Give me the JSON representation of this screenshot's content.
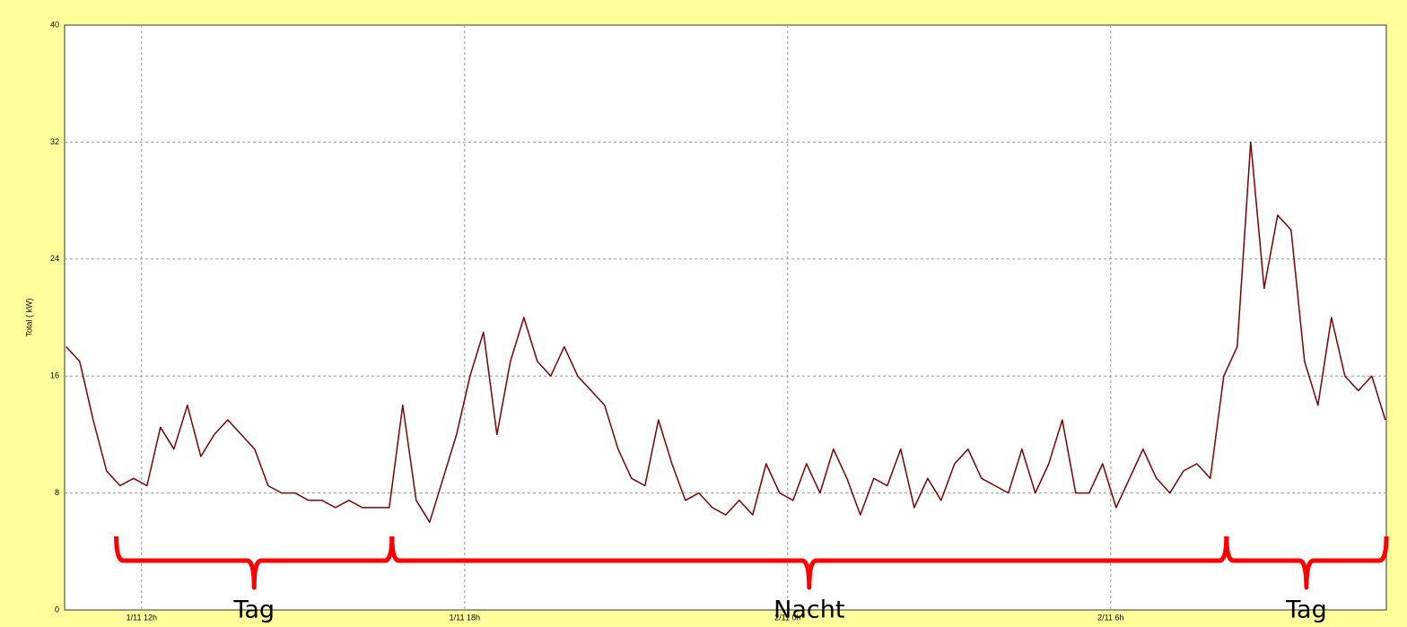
{
  "chart_data": {
    "type": "line",
    "y_label": "Total ( kW)",
    "xlim": [
      10.57,
      35.12
    ],
    "ylim": [
      0,
      40
    ],
    "yticks": [
      0,
      8,
      16,
      24,
      32,
      40
    ],
    "xticks": [
      {
        "value": 12,
        "label": "1/11 12h"
      },
      {
        "value": 18,
        "label": "1/11 18h"
      },
      {
        "value": 24,
        "label": "2/11 0h"
      },
      {
        "value": 30,
        "label": "2/11 6h"
      }
    ],
    "grid": true,
    "series": [
      {
        "color": "#800000",
        "x": [
          10.6,
          10.85,
          11.1,
          11.35,
          11.6,
          11.85,
          12.1,
          12.35,
          12.6,
          12.85,
          13.1,
          13.35,
          13.6,
          13.85,
          14.1,
          14.35,
          14.6,
          14.85,
          15.1,
          15.35,
          15.6,
          15.85,
          16.1,
          16.35,
          16.6,
          16.85,
          17.1,
          17.35,
          17.6,
          17.85,
          18.1,
          18.35,
          18.6,
          18.85,
          19.1,
          19.35,
          19.6,
          19.85,
          20.1,
          20.35,
          20.6,
          20.85,
          21.1,
          21.35,
          21.6,
          21.85,
          22.1,
          22.35,
          22.6,
          22.85,
          23.1,
          23.35,
          23.6,
          23.85,
          24.1,
          24.35,
          24.6,
          24.85,
          25.1,
          25.35,
          25.6,
          25.85,
          26.1,
          26.35,
          26.6,
          26.85,
          27.1,
          27.35,
          27.6,
          27.85,
          28.1,
          28.35,
          28.6,
          28.85,
          29.1,
          29.35,
          29.6,
          29.85,
          30.1,
          30.35,
          30.6,
          30.85,
          31.1,
          31.35,
          31.6,
          31.85,
          32.1,
          32.35,
          32.6,
          32.85,
          33.1,
          33.35,
          33.6,
          33.85,
          34.1,
          34.35,
          34.6,
          34.85,
          35.1
        ],
        "values": [
          18,
          17,
          13,
          9.5,
          8.5,
          9,
          8.5,
          12.5,
          11,
          14,
          10.5,
          12,
          13,
          12,
          11,
          8.5,
          8,
          8,
          7.5,
          7.5,
          7,
          7.5,
          7,
          7,
          7,
          14,
          7.5,
          6,
          9,
          12,
          16,
          19,
          12,
          17,
          20,
          17,
          16,
          18,
          16,
          15,
          14,
          11,
          9,
          8.5,
          13,
          10,
          7.5,
          8,
          7,
          6.5,
          7.5,
          6.5,
          10,
          8,
          7.5,
          10,
          8,
          11,
          9,
          6.5,
          9,
          8.5,
          11,
          7,
          9,
          7.5,
          10,
          11,
          9,
          8.5,
          8,
          11,
          8,
          10,
          13,
          8,
          8,
          10,
          7,
          9,
          11,
          9,
          8,
          9.5,
          10,
          9,
          16,
          18,
          32,
          22,
          27,
          26,
          17,
          14,
          20,
          16,
          15,
          16,
          13
        ]
      }
    ],
    "annotations": [
      {
        "text": "Tag",
        "x_start": 11.53,
        "x_end": 16.65
      },
      {
        "text": "Nacht",
        "x_start": 16.65,
        "x_end": 32.15
      },
      {
        "text": "Tag",
        "x_start": 32.15,
        "x_end": 35.12
      }
    ]
  }
}
